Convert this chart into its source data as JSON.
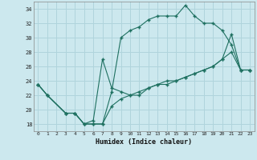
{
  "xlabel": "Humidex (Indice chaleur)",
  "background_color": "#cce8ee",
  "grid_color": "#b0d4dc",
  "line_color": "#1e7060",
  "xlim": [
    -0.5,
    23.5
  ],
  "ylim": [
    17,
    35
  ],
  "xticks": [
    0,
    1,
    2,
    3,
    4,
    5,
    6,
    7,
    8,
    9,
    10,
    11,
    12,
    13,
    14,
    15,
    16,
    17,
    18,
    19,
    20,
    21,
    22,
    23
  ],
  "yticks": [
    18,
    20,
    22,
    24,
    26,
    28,
    30,
    32,
    34
  ],
  "line1_x": [
    0,
    1,
    3,
    4,
    5,
    6,
    7,
    8,
    9,
    10,
    11,
    12,
    13,
    14,
    15,
    16,
    17,
    18,
    19,
    20,
    21,
    22,
    23
  ],
  "line1_y": [
    23.5,
    22,
    19.5,
    19.5,
    18,
    18,
    18,
    22.5,
    30,
    31,
    31.5,
    32.5,
    33,
    33,
    33,
    34.5,
    33,
    32,
    32,
    31,
    29,
    25.5,
    25.5
  ],
  "line2_x": [
    0,
    1,
    3,
    4,
    5,
    6,
    7,
    8,
    9,
    10,
    11,
    12,
    13,
    14,
    15,
    16,
    17,
    18,
    19,
    20,
    21,
    22,
    23
  ],
  "line2_y": [
    23.5,
    22,
    19.5,
    19.5,
    18,
    18.5,
    27,
    23,
    22.5,
    22,
    22,
    23,
    23.5,
    23.5,
    24,
    24.5,
    25,
    25.5,
    26,
    27,
    28,
    25.5,
    25.5
  ],
  "line3_x": [
    0,
    1,
    3,
    4,
    5,
    6,
    7,
    8,
    9,
    10,
    11,
    12,
    13,
    14,
    15,
    16,
    17,
    18,
    19,
    20,
    21,
    22,
    23
  ],
  "line3_y": [
    23.5,
    22,
    19.5,
    19.5,
    18,
    18,
    18,
    20.5,
    21.5,
    22,
    22.5,
    23,
    23.5,
    24,
    24,
    24.5,
    25,
    25.5,
    26,
    27,
    30.5,
    25.5,
    25.5
  ]
}
